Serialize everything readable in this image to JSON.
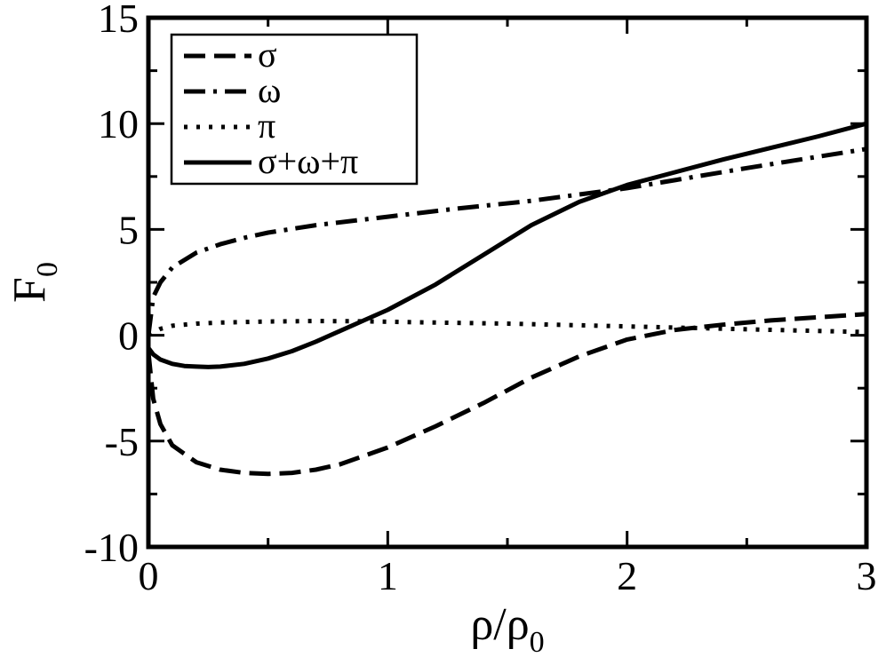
{
  "chart_data": {
    "type": "line",
    "xlabel": "ρ/ρ",
    "xlabel_sub": "0",
    "ylabel": "F",
    "ylabel_sub": "0",
    "xlim": [
      0,
      3
    ],
    "ylim": [
      -10,
      15
    ],
    "xticks": [
      0,
      1,
      2,
      3
    ],
    "xtick_labels": [
      "0",
      "1",
      "2",
      "3"
    ],
    "yticks": [
      -10,
      -5,
      0,
      5,
      10,
      15
    ],
    "ytick_labels": [
      "-10",
      "-5",
      "0",
      "5",
      "10",
      "15"
    ],
    "grid": false,
    "legend_position": "top-left",
    "series": [
      {
        "name": "σ",
        "style": "dashed",
        "x": [
          0,
          0.02,
          0.05,
          0.1,
          0.2,
          0.3,
          0.4,
          0.5,
          0.6,
          0.7,
          0.8,
          1.0,
          1.2,
          1.4,
          1.6,
          1.8,
          2.0,
          2.2,
          2.4,
          2.6,
          2.8,
          3.0
        ],
        "values": [
          -0.8,
          -3.0,
          -4.2,
          -5.2,
          -6.0,
          -6.35,
          -6.5,
          -6.55,
          -6.5,
          -6.35,
          -6.1,
          -5.3,
          -4.3,
          -3.2,
          -2.0,
          -1.0,
          -0.2,
          0.25,
          0.5,
          0.7,
          0.85,
          1.0
        ]
      },
      {
        "name": "ω",
        "style": "dash-dot",
        "x": [
          0,
          0.02,
          0.05,
          0.1,
          0.2,
          0.3,
          0.4,
          0.5,
          0.7,
          1.0,
          1.3,
          1.6,
          2.0,
          2.5,
          3.0
        ],
        "values": [
          0.0,
          1.8,
          2.5,
          3.2,
          3.9,
          4.3,
          4.6,
          4.85,
          5.2,
          5.6,
          6.0,
          6.35,
          6.95,
          7.9,
          8.8
        ]
      },
      {
        "name": "π",
        "style": "dotted",
        "x": [
          0,
          0.05,
          0.1,
          0.2,
          0.3,
          0.5,
          0.7,
          0.9,
          1.2,
          1.5,
          2.0,
          2.5,
          3.0
        ],
        "values": [
          0.0,
          0.3,
          0.45,
          0.55,
          0.6,
          0.65,
          0.67,
          0.66,
          0.6,
          0.55,
          0.42,
          0.28,
          0.15
        ]
      },
      {
        "name": "σ+ω+π",
        "style": "solid",
        "x": [
          0,
          0.02,
          0.05,
          0.1,
          0.15,
          0.2,
          0.25,
          0.3,
          0.4,
          0.5,
          0.6,
          0.7,
          0.8,
          0.9,
          1.0,
          1.2,
          1.4,
          1.6,
          1.8,
          2.0,
          2.2,
          2.4,
          2.6,
          2.8,
          3.0
        ],
        "values": [
          -0.6,
          -0.9,
          -1.15,
          -1.35,
          -1.45,
          -1.48,
          -1.5,
          -1.48,
          -1.35,
          -1.1,
          -0.75,
          -0.3,
          0.2,
          0.7,
          1.2,
          2.4,
          3.8,
          5.2,
          6.3,
          7.1,
          7.7,
          8.3,
          8.85,
          9.4,
          10.0
        ]
      }
    ]
  }
}
